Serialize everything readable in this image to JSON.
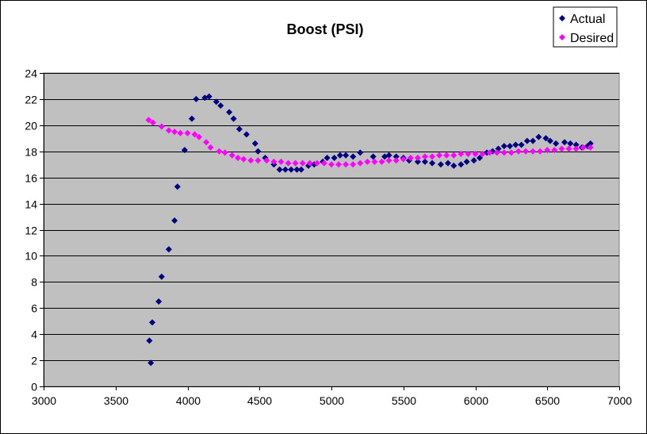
{
  "colors": {
    "plot_background": "#c0c0c0",
    "gridline": "#000000",
    "actual": "#000080",
    "desired": "#ff00ff"
  },
  "chart_data": {
    "type": "scatter",
    "title": "Boost (PSI)",
    "xlabel": "",
    "ylabel": "",
    "xlim": [
      3000,
      7000
    ],
    "ylim": [
      0,
      24
    ],
    "xticks": [
      3000,
      3500,
      4000,
      4500,
      5000,
      5500,
      6000,
      6500,
      7000
    ],
    "yticks": [
      0,
      2,
      4,
      6,
      8,
      10,
      12,
      14,
      16,
      18,
      20,
      22,
      24
    ],
    "grid": "horizontal",
    "legend_position": "top-right",
    "series": [
      {
        "name": "Actual",
        "marker": "diamond",
        "points": [
          [
            3735,
            3.5
          ],
          [
            3745,
            1.8
          ],
          [
            3755,
            4.9
          ],
          [
            3800,
            6.5
          ],
          [
            3820,
            8.4
          ],
          [
            3870,
            10.5
          ],
          [
            3910,
            12.7
          ],
          [
            3930,
            15.3
          ],
          [
            3980,
            18.1
          ],
          [
            4030,
            20.5
          ],
          [
            4060,
            22.0
          ],
          [
            4120,
            22.1
          ],
          [
            4150,
            22.2
          ],
          [
            4200,
            21.8
          ],
          [
            4230,
            21.5
          ],
          [
            4290,
            21.0
          ],
          [
            4320,
            20.5
          ],
          [
            4360,
            19.7
          ],
          [
            4410,
            19.3
          ],
          [
            4470,
            18.6
          ],
          [
            4490,
            18.0
          ],
          [
            4540,
            17.5
          ],
          [
            4600,
            17.0
          ],
          [
            4640,
            16.6
          ],
          [
            4680,
            16.6
          ],
          [
            4720,
            16.6
          ],
          [
            4760,
            16.6
          ],
          [
            4790,
            16.6
          ],
          [
            4840,
            16.9
          ],
          [
            4880,
            17.0
          ],
          [
            4940,
            17.2
          ],
          [
            4970,
            17.5
          ],
          [
            5020,
            17.5
          ],
          [
            5060,
            17.7
          ],
          [
            5100,
            17.7
          ],
          [
            5150,
            17.6
          ],
          [
            5200,
            17.9
          ],
          [
            5290,
            17.6
          ],
          [
            5370,
            17.6
          ],
          [
            5400,
            17.7
          ],
          [
            5450,
            17.6
          ],
          [
            5500,
            17.5
          ],
          [
            5540,
            17.3
          ],
          [
            5600,
            17.2
          ],
          [
            5650,
            17.2
          ],
          [
            5700,
            17.1
          ],
          [
            5760,
            17.0
          ],
          [
            5810,
            17.1
          ],
          [
            5850,
            16.9
          ],
          [
            5900,
            17.0
          ],
          [
            5940,
            17.2
          ],
          [
            5990,
            17.3
          ],
          [
            6030,
            17.5
          ],
          [
            6080,
            17.9
          ],
          [
            6120,
            18.0
          ],
          [
            6160,
            18.2
          ],
          [
            6200,
            18.4
          ],
          [
            6240,
            18.4
          ],
          [
            6280,
            18.5
          ],
          [
            6320,
            18.5
          ],
          [
            6360,
            18.8
          ],
          [
            6400,
            18.8
          ],
          [
            6440,
            19.1
          ],
          [
            6490,
            19.0
          ],
          [
            6520,
            18.8
          ],
          [
            6560,
            18.6
          ],
          [
            6620,
            18.7
          ],
          [
            6660,
            18.6
          ],
          [
            6700,
            18.5
          ],
          [
            6740,
            18.3
          ],
          [
            6780,
            18.4
          ],
          [
            6800,
            18.6
          ]
        ]
      },
      {
        "name": "Desired",
        "marker": "diamond",
        "points": [
          [
            3730,
            20.4
          ],
          [
            3760,
            20.2
          ],
          [
            3820,
            19.9
          ],
          [
            3870,
            19.6
          ],
          [
            3910,
            19.5
          ],
          [
            3950,
            19.4
          ],
          [
            4000,
            19.4
          ],
          [
            4050,
            19.3
          ],
          [
            4080,
            19.1
          ],
          [
            4130,
            18.7
          ],
          [
            4160,
            18.3
          ],
          [
            4220,
            18.0
          ],
          [
            4260,
            17.9
          ],
          [
            4310,
            17.7
          ],
          [
            4350,
            17.5
          ],
          [
            4390,
            17.4
          ],
          [
            4440,
            17.3
          ],
          [
            4490,
            17.3
          ],
          [
            4550,
            17.3
          ],
          [
            4600,
            17.2
          ],
          [
            4650,
            17.2
          ],
          [
            4700,
            17.1
          ],
          [
            4750,
            17.1
          ],
          [
            4800,
            17.1
          ],
          [
            4850,
            17.1
          ],
          [
            4900,
            17.1
          ],
          [
            4950,
            17.1
          ],
          [
            5000,
            17.0
          ],
          [
            5050,
            17.0
          ],
          [
            5100,
            17.0
          ],
          [
            5150,
            17.0
          ],
          [
            5200,
            17.1
          ],
          [
            5250,
            17.2
          ],
          [
            5300,
            17.2
          ],
          [
            5350,
            17.2
          ],
          [
            5400,
            17.3
          ],
          [
            5450,
            17.3
          ],
          [
            5500,
            17.4
          ],
          [
            5550,
            17.5
          ],
          [
            5600,
            17.5
          ],
          [
            5650,
            17.6
          ],
          [
            5700,
            17.6
          ],
          [
            5750,
            17.7
          ],
          [
            5800,
            17.7
          ],
          [
            5850,
            17.7
          ],
          [
            5900,
            17.8
          ],
          [
            5950,
            17.8
          ],
          [
            6000,
            17.8
          ],
          [
            6050,
            17.8
          ],
          [
            6100,
            17.9
          ],
          [
            6150,
            17.9
          ],
          [
            6200,
            17.9
          ],
          [
            6250,
            17.9
          ],
          [
            6300,
            18.0
          ],
          [
            6350,
            18.0
          ],
          [
            6400,
            18.0
          ],
          [
            6450,
            18.0
          ],
          [
            6500,
            18.1
          ],
          [
            6550,
            18.1
          ],
          [
            6600,
            18.2
          ],
          [
            6650,
            18.2
          ],
          [
            6700,
            18.2
          ],
          [
            6750,
            18.3
          ],
          [
            6800,
            18.3
          ]
        ]
      }
    ]
  }
}
